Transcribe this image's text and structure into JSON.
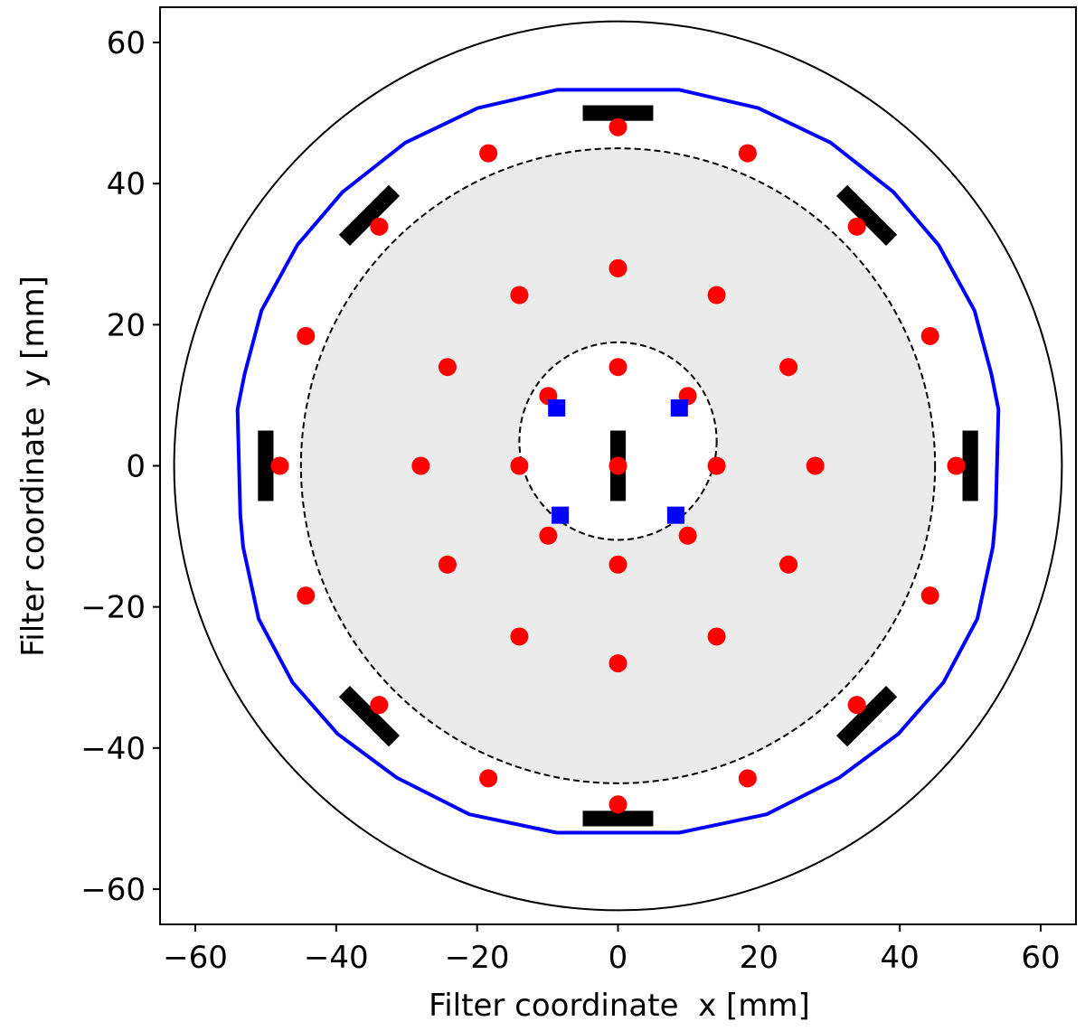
{
  "chart_data": {
    "type": "scatter",
    "title": "",
    "xlabel": "Filter coordinate  x [mm]",
    "ylabel": "Filter coordinate  y [mm]",
    "xlim": [
      -65,
      65
    ],
    "ylim": [
      -65,
      65
    ],
    "xticks": [
      -60,
      -40,
      -20,
      0,
      20,
      40,
      60
    ],
    "yticks": [
      -60,
      -40,
      -20,
      0,
      20,
      40,
      60
    ],
    "xtick_labels": [
      "−60",
      "−40",
      "−20",
      "0",
      "20",
      "40",
      "60"
    ],
    "ytick_labels": [
      "−60",
      "−40",
      "−20",
      "0",
      "20",
      "40",
      "60"
    ],
    "grid": false,
    "colors": {
      "points": "#ff0000",
      "squares": "#0000ff",
      "boundary": "#0000ff",
      "pads": "#000000",
      "shaded_annulus": "#ebebeb"
    },
    "outer_circle": {
      "center": [
        0,
        0
      ],
      "radius": 63
    },
    "shaded_circle": {
      "center": [
        0,
        0
      ],
      "radius": 45,
      "style": "dashed"
    },
    "inner_circle": {
      "center": [
        0,
        3.5
      ],
      "radius": 14,
      "style": "dashed"
    },
    "boundary_curve": [
      [
        -8.7,
        53.3
      ],
      [
        8.7,
        53.3
      ],
      [
        19.9,
        50.7
      ],
      [
        30.2,
        45.8
      ],
      [
        39.1,
        38.8
      ],
      [
        45.5,
        31.3
      ],
      [
        50.6,
        22.0
      ],
      [
        53.0,
        13.0
      ],
      [
        54.0,
        8.0
      ],
      [
        53.6,
        -7.0
      ],
      [
        53.2,
        -11.5
      ],
      [
        51.0,
        -21.7
      ],
      [
        46.2,
        -30.7
      ],
      [
        39.8,
        -38.0
      ],
      [
        31.4,
        -44.2
      ],
      [
        21.1,
        -49.4
      ],
      [
        8.7,
        -52.0
      ],
      [
        -8.7,
        -52.0
      ],
      [
        -21.1,
        -49.4
      ],
      [
        -31.4,
        -44.2
      ],
      [
        -39.8,
        -38.0
      ],
      [
        -46.2,
        -30.7
      ],
      [
        -51.0,
        -21.7
      ],
      [
        -53.2,
        -11.5
      ],
      [
        -53.6,
        -7.0
      ],
      [
        -54.0,
        8.0
      ],
      [
        -53.0,
        13.0
      ],
      [
        -50.6,
        22.0
      ],
      [
        -45.5,
        31.3
      ],
      [
        -39.1,
        38.8
      ],
      [
        -30.2,
        45.8
      ],
      [
        -19.9,
        50.7
      ],
      [
        -8.7,
        53.3
      ]
    ],
    "pads": [
      {
        "x": 0,
        "y": 50.0,
        "length": 10,
        "width": 2.2,
        "angle": 0
      },
      {
        "x": 0,
        "y": -50.0,
        "length": 10,
        "width": 2.2,
        "angle": 0
      },
      {
        "x": 50.0,
        "y": 0,
        "length": 10,
        "width": 2.2,
        "angle": 90
      },
      {
        "x": -50.0,
        "y": 0,
        "length": 10,
        "width": 2.2,
        "angle": 90
      },
      {
        "x": 35.3,
        "y": 35.5,
        "length": 10,
        "width": 2.2,
        "angle": 45
      },
      {
        "x": -35.3,
        "y": 35.5,
        "length": 10,
        "width": 2.2,
        "angle": -45
      },
      {
        "x": 35.3,
        "y": -35.5,
        "length": 10,
        "width": 2.2,
        "angle": -45
      },
      {
        "x": -35.3,
        "y": -35.5,
        "length": 10,
        "width": 2.2,
        "angle": 45
      },
      {
        "x": 0,
        "y": 0,
        "length": 10,
        "width": 2.2,
        "angle": 90
      }
    ],
    "series": [
      {
        "marker": "circle",
        "color": "#ff0000",
        "points": [
          [
            0,
            48
          ],
          [
            18.4,
            44.3
          ],
          [
            33.9,
            33.9
          ],
          [
            44.3,
            18.4
          ],
          [
            48,
            0
          ],
          [
            44.3,
            -18.4
          ],
          [
            33.9,
            -33.9
          ],
          [
            18.4,
            -44.3
          ],
          [
            0,
            -48
          ],
          [
            -18.4,
            -44.3
          ],
          [
            -33.9,
            -33.9
          ],
          [
            -44.3,
            -18.4
          ],
          [
            -48,
            0
          ],
          [
            -44.3,
            18.4
          ],
          [
            -33.9,
            33.9
          ],
          [
            -18.4,
            44.3
          ],
          [
            0,
            28
          ],
          [
            14,
            24.2
          ],
          [
            24.2,
            14
          ],
          [
            28,
            0
          ],
          [
            24.2,
            -14
          ],
          [
            14,
            -24.2
          ],
          [
            0,
            -28
          ],
          [
            -14,
            -24.2
          ],
          [
            -24.2,
            -14
          ],
          [
            -28,
            0
          ],
          [
            -24.2,
            14
          ],
          [
            -14,
            24.2
          ],
          [
            0,
            14
          ],
          [
            9.9,
            9.9
          ],
          [
            14,
            0
          ],
          [
            9.9,
            -9.9
          ],
          [
            0,
            -14
          ],
          [
            -9.9,
            -9.9
          ],
          [
            -14,
            0
          ],
          [
            -9.9,
            9.9
          ],
          [
            0,
            0
          ]
        ]
      },
      {
        "marker": "square",
        "color": "#0000ff",
        "points": [
          [
            -8.7,
            8.2
          ],
          [
            8.7,
            8.2
          ],
          [
            -8.2,
            -7.0
          ],
          [
            8.2,
            -7.0
          ]
        ]
      }
    ]
  }
}
